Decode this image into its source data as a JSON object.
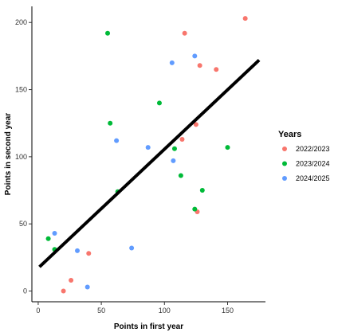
{
  "chart_data": {
    "type": "scatter",
    "xlabel": "Points in first year",
    "ylabel": "Points in second year",
    "xlim": [
      -5,
      180
    ],
    "ylim": [
      -8,
      212
    ],
    "x_ticks": [
      0,
      50,
      100,
      150
    ],
    "y_ticks": [
      0,
      50,
      100,
      150,
      200
    ],
    "grid": false,
    "legend": {
      "title": "Years",
      "position": "right"
    },
    "series": [
      {
        "name": "2022/2023",
        "color": "#F8766D",
        "points": [
          {
            "x": 20,
            "y": 0
          },
          {
            "x": 26,
            "y": 8
          },
          {
            "x": 40,
            "y": 28
          },
          {
            "x": 114,
            "y": 113
          },
          {
            "x": 116,
            "y": 192
          },
          {
            "x": 125,
            "y": 124
          },
          {
            "x": 126,
            "y": 59
          },
          {
            "x": 128,
            "y": 168
          },
          {
            "x": 141,
            "y": 165
          },
          {
            "x": 164,
            "y": 203
          }
        ]
      },
      {
        "name": "2023/2024",
        "color": "#00BA38",
        "points": [
          {
            "x": 8,
            "y": 39
          },
          {
            "x": 13,
            "y": 31
          },
          {
            "x": 55,
            "y": 192
          },
          {
            "x": 57,
            "y": 125
          },
          {
            "x": 63,
            "y": 74
          },
          {
            "x": 96,
            "y": 140
          },
          {
            "x": 108,
            "y": 106
          },
          {
            "x": 113,
            "y": 86
          },
          {
            "x": 124,
            "y": 61
          },
          {
            "x": 130,
            "y": 75
          },
          {
            "x": 150,
            "y": 107
          }
        ]
      },
      {
        "name": "2024/2025",
        "color": "#619CFF",
        "points": [
          {
            "x": 13,
            "y": 43
          },
          {
            "x": 31,
            "y": 30
          },
          {
            "x": 39,
            "y": 3
          },
          {
            "x": 62,
            "y": 112
          },
          {
            "x": 74,
            "y": 32
          },
          {
            "x": 87,
            "y": 107
          },
          {
            "x": 106,
            "y": 170
          },
          {
            "x": 107,
            "y": 97
          },
          {
            "x": 124,
            "y": 175
          }
        ]
      }
    ],
    "trend_line": {
      "color": "#000000",
      "from": {
        "x": 1,
        "y": 18
      },
      "to": {
        "x": 175,
        "y": 172
      }
    }
  }
}
